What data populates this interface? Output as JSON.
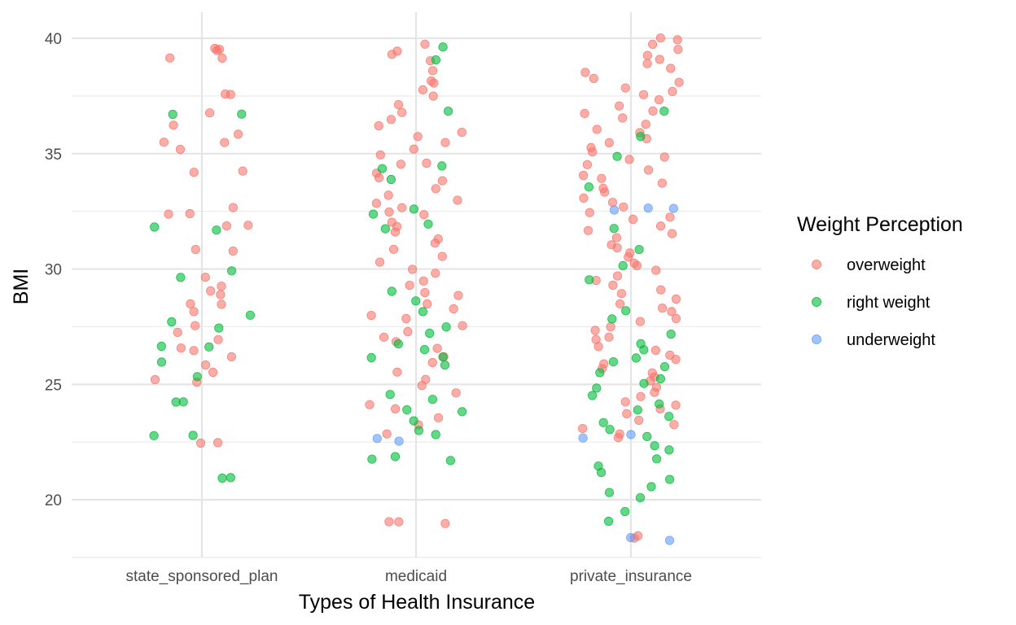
{
  "chart_data": {
    "type": "scatter",
    "subtype": "jitter",
    "title": "",
    "xlabel": "Types of Health Insurance",
    "ylabel": "BMI",
    "categories": [
      "state_sponsored_plan",
      "medicaid",
      "private_insurance"
    ],
    "ylim": [
      17.5,
      40.6
    ],
    "yticks": [
      20,
      25,
      30,
      35,
      40
    ],
    "grid": true,
    "point_alpha": 0.6,
    "legend": {
      "title": "Weight Perception",
      "position": "right",
      "entries": [
        "overweight",
        "right weight",
        "underweight"
      ]
    },
    "colors": {
      "overweight": "#F8766D",
      "right weight": "#00BA38",
      "underweight": "#619CFF"
    },
    "series": [
      {
        "name": "overweight",
        "category": "state_sponsored_plan",
        "values": [
          39.5,
          39.5,
          39.5,
          39.1,
          39.1,
          37.6,
          37.6,
          36.8,
          36.2,
          35.8,
          35.5,
          35.5,
          35.2,
          34.2,
          34.2,
          32.7,
          32.4,
          32.4,
          31.9,
          31.9,
          30.8,
          30.8,
          29.6,
          29.3,
          29.1,
          28.9,
          28.5,
          28.5,
          28.1,
          27.6,
          27.3,
          27.0,
          26.6,
          26.5,
          26.2,
          25.8,
          25.5,
          25.2,
          25.1,
          22.5,
          22.4
        ]
      },
      {
        "name": "right weight",
        "category": "state_sponsored_plan",
        "values": [
          36.7,
          36.7,
          31.8,
          31.7,
          29.9,
          29.6,
          28.0,
          27.7,
          27.4,
          26.6,
          26.6,
          26.0,
          25.3,
          24.2,
          24.2,
          22.8,
          22.8,
          20.9,
          20.9
        ]
      },
      {
        "name": "overweight",
        "category": "medicaid",
        "values": [
          39.7,
          39.5,
          39.3,
          39.0,
          38.6,
          38.1,
          38.1,
          37.8,
          37.5,
          37.1,
          36.8,
          36.5,
          36.2,
          35.9,
          35.7,
          35.5,
          35.2,
          34.9,
          34.6,
          34.6,
          34.2,
          34.0,
          33.8,
          33.5,
          33.2,
          33.0,
          32.8,
          32.6,
          32.5,
          32.3,
          32.0,
          31.8,
          31.6,
          31.3,
          31.1,
          30.9,
          30.6,
          30.3,
          30.0,
          29.8,
          29.5,
          29.3,
          29.0,
          28.8,
          28.5,
          28.3,
          28.0,
          27.8,
          27.6,
          27.3,
          27.0,
          26.8,
          26.5,
          26.2,
          25.9,
          25.5,
          25.2,
          25.0,
          24.6,
          24.1,
          23.9,
          23.5,
          23.2,
          22.9,
          19.0,
          19.0,
          19.0
        ]
      },
      {
        "name": "right weight",
        "category": "medicaid",
        "values": [
          39.6,
          39.1,
          36.8,
          34.5,
          34.4,
          33.9,
          32.6,
          32.4,
          31.9,
          31.8,
          29.0,
          28.6,
          28.2,
          27.5,
          27.2,
          26.8,
          26.5,
          26.2,
          26.1,
          25.8,
          24.6,
          24.3,
          23.9,
          23.8,
          23.4,
          23.0,
          22.8,
          21.9,
          21.8,
          21.7
        ]
      },
      {
        "name": "underweight",
        "category": "medicaid",
        "values": [
          22.6,
          22.6
        ]
      },
      {
        "name": "overweight",
        "category": "private_insurance",
        "values": [
          40.0,
          39.9,
          39.7,
          39.5,
          39.3,
          39.1,
          38.9,
          38.7,
          38.5,
          38.3,
          38.1,
          37.9,
          37.7,
          37.5,
          37.3,
          37.1,
          36.9,
          36.7,
          36.5,
          36.3,
          36.1,
          35.9,
          35.7,
          35.5,
          35.3,
          35.1,
          34.9,
          34.7,
          34.5,
          34.3,
          34.1,
          33.9,
          33.7,
          33.5,
          33.3,
          33.1,
          32.9,
          32.7,
          32.5,
          32.3,
          32.1,
          31.9,
          31.7,
          31.5,
          31.3,
          31.1,
          30.9,
          30.7,
          30.5,
          30.3,
          30.1,
          29.9,
          29.7,
          29.5,
          29.3,
          29.1,
          28.9,
          28.7,
          28.5,
          28.3,
          28.1,
          27.9,
          27.7,
          27.5,
          27.3,
          27.1,
          26.9,
          26.7,
          26.5,
          26.3,
          26.1,
          25.9,
          25.7,
          25.5,
          25.3,
          25.1,
          24.9,
          24.7,
          24.5,
          24.3,
          24.1,
          23.9,
          23.7,
          23.5,
          23.3,
          23.1,
          22.9,
          22.7,
          18.4,
          18.4
        ]
      },
      {
        "name": "right weight",
        "category": "private_insurance",
        "values": [
          36.9,
          35.8,
          34.9,
          33.6,
          31.7,
          30.8,
          30.1,
          29.5,
          28.2,
          27.8,
          27.2,
          26.8,
          26.5,
          26.2,
          26.0,
          25.8,
          25.5,
          25.2,
          25.0,
          24.8,
          24.5,
          24.2,
          23.9,
          23.6,
          23.3,
          23.0,
          22.7,
          22.4,
          22.1,
          21.8,
          21.5,
          21.2,
          20.9,
          20.6,
          20.3,
          20.1,
          19.5,
          19.1
        ]
      },
      {
        "name": "underweight",
        "category": "private_insurance",
        "values": [
          32.6,
          32.6,
          32.6,
          22.8,
          22.7,
          18.3,
          18.2
        ]
      }
    ]
  }
}
